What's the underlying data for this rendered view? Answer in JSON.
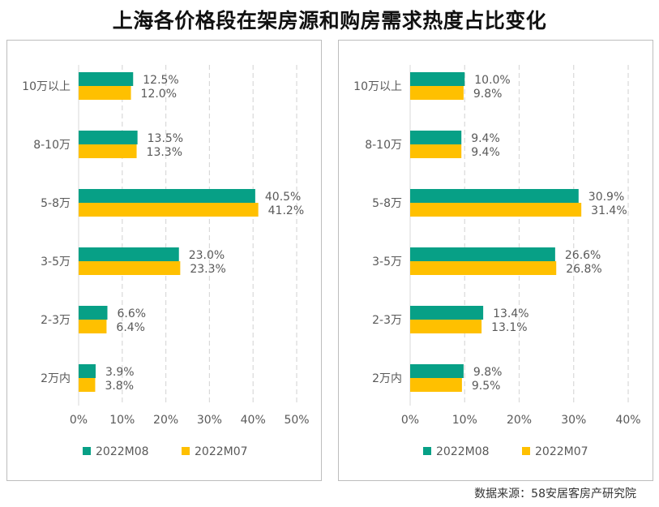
{
  "page_title": "上海各价格段在架房源和购房需求热度占比变化",
  "source": "数据来源：58安居客房产研究院",
  "colors": {
    "series_1": "#07A086",
    "series_2": "#FFC000",
    "grid": "#d9d9d9",
    "axis_text": "#595959"
  },
  "chart_data": [
    {
      "type": "bar",
      "orientation": "horizontal",
      "title": "",
      "categories": [
        "10万以上",
        "8-10万",
        "5-8万",
        "3-5万",
        "2-3万",
        "2万内"
      ],
      "series": [
        {
          "name": "2022M08",
          "values": [
            12.5,
            13.5,
            40.5,
            23.0,
            6.6,
            3.9
          ],
          "labels": [
            "12.5%",
            "13.5%",
            "40.5%",
            "23.0%",
            "6.6%",
            "3.9%"
          ]
        },
        {
          "name": "2022M07",
          "values": [
            12.0,
            13.3,
            41.2,
            23.3,
            6.4,
            3.8
          ],
          "labels": [
            "12.0%",
            "13.3%",
            "41.2%",
            "23.3%",
            "6.4%",
            "3.8%"
          ]
        }
      ],
      "xlim": [
        0,
        50
      ],
      "xticks": [
        "0%",
        "10%",
        "20%",
        "30%",
        "40%",
        "50%"
      ],
      "grid": "vertical dashed",
      "legend": "bottom"
    },
    {
      "type": "bar",
      "orientation": "horizontal",
      "title": "",
      "categories": [
        "10万以上",
        "8-10万",
        "5-8万",
        "3-5万",
        "2-3万",
        "2万内"
      ],
      "series": [
        {
          "name": "2022M08",
          "values": [
            10.0,
            9.4,
            30.9,
            26.6,
            13.4,
            9.8
          ],
          "labels": [
            "10.0%",
            "9.4%",
            "30.9%",
            "26.6%",
            "13.4%",
            "9.8%"
          ]
        },
        {
          "name": "2022M07",
          "values": [
            9.8,
            9.4,
            31.4,
            26.8,
            13.1,
            9.5
          ],
          "labels": [
            "9.8%",
            "9.4%",
            "31.4%",
            "26.8%",
            "13.1%",
            "9.5%"
          ]
        }
      ],
      "xlim": [
        0,
        40
      ],
      "xticks": [
        "0%",
        "10%",
        "20%",
        "30%",
        "40%"
      ],
      "grid": "vertical dashed",
      "legend": "bottom"
    }
  ]
}
